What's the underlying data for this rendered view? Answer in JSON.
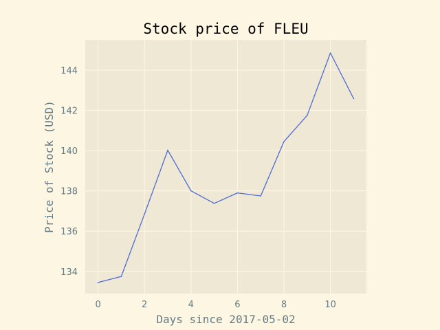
{
  "chart_data": {
    "type": "line",
    "title": "Stock price of FLEU",
    "xlabel": "Days since 2017-05-02",
    "ylabel": "Price of Stock (USD)",
    "x": [
      0,
      1,
      2,
      3,
      4,
      5,
      6,
      7,
      8,
      9,
      10,
      11
    ],
    "series": [
      {
        "values": [
          133.45,
          133.75,
          136.85,
          140.02,
          138.0,
          137.38,
          137.9,
          137.75,
          140.45,
          141.75,
          144.85,
          142.58
        ]
      }
    ],
    "xlim": [
      -0.55,
      11.55
    ],
    "ylim": [
      132.9,
      145.5
    ],
    "xticks": [
      0,
      2,
      4,
      6,
      8,
      10
    ],
    "yticks": [
      134,
      136,
      138,
      140,
      142,
      144
    ],
    "grid": true,
    "legend": "none",
    "colors": {
      "page_background": "#fdf6e3",
      "plot_background": "#eee8d5",
      "grid": "#fdf6e3",
      "line": "#4e6ad8",
      "label": "#657b83",
      "title": "#000000"
    }
  }
}
